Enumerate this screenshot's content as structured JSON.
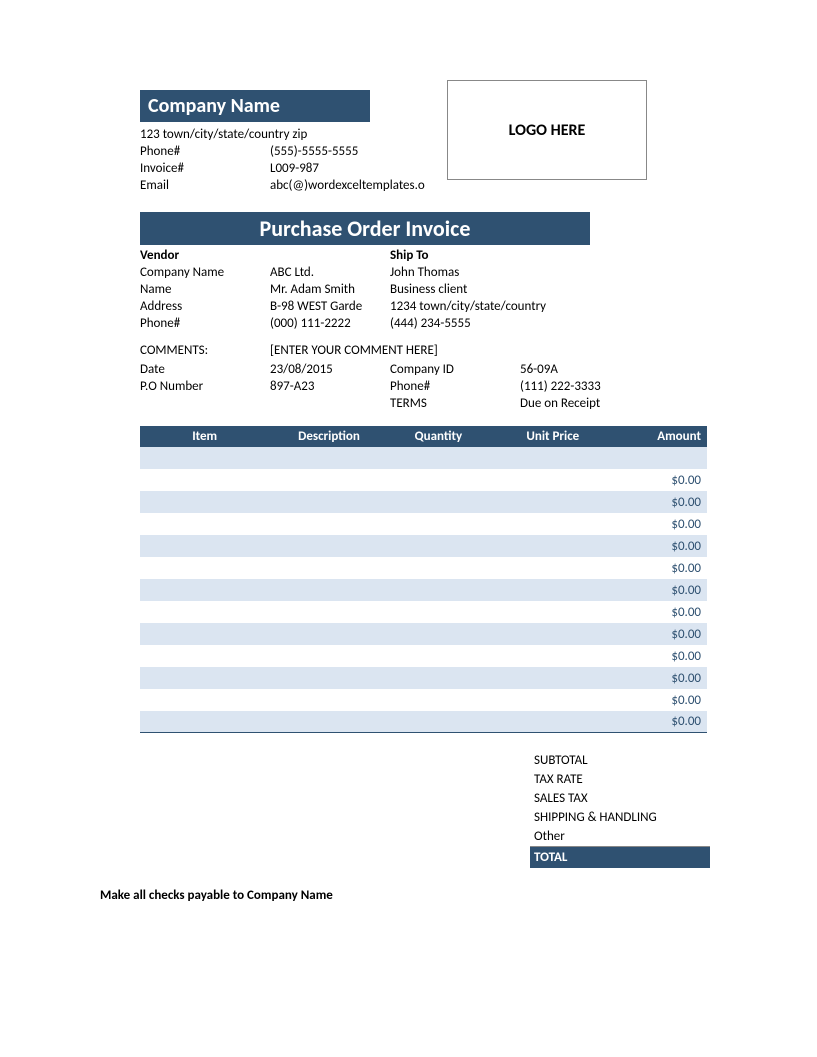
{
  "colors": {
    "primary": "#2f5171",
    "alt_row": "#dbe5f1",
    "background": "#ffffff",
    "text": "#000000"
  },
  "header": {
    "company_name": "Company Name",
    "address": "123 town/city/state/country zip",
    "phone_label": "Phone#",
    "phone": "(555)-5555-5555",
    "invoice_label": "Invoice#",
    "invoice": "L009-987",
    "email_label": "Email",
    "email": "abc(@)wordexceltemplates.o",
    "logo_text": "LOGO HERE"
  },
  "title": "Purchase Order Invoice",
  "vendor": {
    "heading": "Vendor",
    "company_label": "Company Name",
    "company": "ABC Ltd.",
    "name_label": "Name",
    "name": "Mr. Adam Smith",
    "address_label": "Address",
    "address": "B-98 WEST Garde",
    "phone_label": "Phone#",
    "phone": "(000) 111-2222"
  },
  "shipto": {
    "heading": "Ship To",
    "name": "John Thomas",
    "type": "Business client",
    "address": "1234 town/city/state/country",
    "phone": "(444) 234-5555"
  },
  "comments": {
    "label": "COMMENTS:",
    "value": "[ENTER YOUR COMMENT HERE]"
  },
  "details": {
    "date_label": "Date",
    "date": "23/08/2015",
    "po_label": "P.O Number",
    "po": "897-A23",
    "company_id_label": "Company ID",
    "company_id": "56-09A",
    "phone_label": "Phone#",
    "phone": "(111) 222-3333",
    "terms_label": "TERMS",
    "terms": "Due on Receipt"
  },
  "table": {
    "headers": {
      "item": "Item",
      "description": "Description",
      "quantity": "Quantity",
      "unit_price": "Unit Price",
      "amount": "Amount"
    },
    "rows": [
      {
        "item": "",
        "description": "",
        "quantity": "",
        "unit_price": "",
        "amount": ""
      },
      {
        "item": "",
        "description": "",
        "quantity": "",
        "unit_price": "",
        "amount": "$0.00"
      },
      {
        "item": "",
        "description": "",
        "quantity": "",
        "unit_price": "",
        "amount": "$0.00"
      },
      {
        "item": "",
        "description": "",
        "quantity": "",
        "unit_price": "",
        "amount": "$0.00"
      },
      {
        "item": "",
        "description": "",
        "quantity": "",
        "unit_price": "",
        "amount": "$0.00"
      },
      {
        "item": "",
        "description": "",
        "quantity": "",
        "unit_price": "",
        "amount": "$0.00"
      },
      {
        "item": "",
        "description": "",
        "quantity": "",
        "unit_price": "",
        "amount": "$0.00"
      },
      {
        "item": "",
        "description": "",
        "quantity": "",
        "unit_price": "",
        "amount": "$0.00"
      },
      {
        "item": "",
        "description": "",
        "quantity": "",
        "unit_price": "",
        "amount": "$0.00"
      },
      {
        "item": "",
        "description": "",
        "quantity": "",
        "unit_price": "",
        "amount": "$0.00"
      },
      {
        "item": "",
        "description": "",
        "quantity": "",
        "unit_price": "",
        "amount": "$0.00"
      },
      {
        "item": "",
        "description": "",
        "quantity": "",
        "unit_price": "",
        "amount": "$0.00"
      },
      {
        "item": "",
        "description": "",
        "quantity": "",
        "unit_price": "",
        "amount": "$0.00"
      }
    ]
  },
  "totals": {
    "subtotal_label": "SUBTOTAL",
    "tax_rate_label": "TAX RATE",
    "sales_tax_label": "SALES TAX",
    "shipping_label": "SHIPPING & HANDLING",
    "other_label": "Other",
    "total_label": "TOTAL"
  },
  "footer": {
    "note": "Make all checks payable to Company Name"
  }
}
